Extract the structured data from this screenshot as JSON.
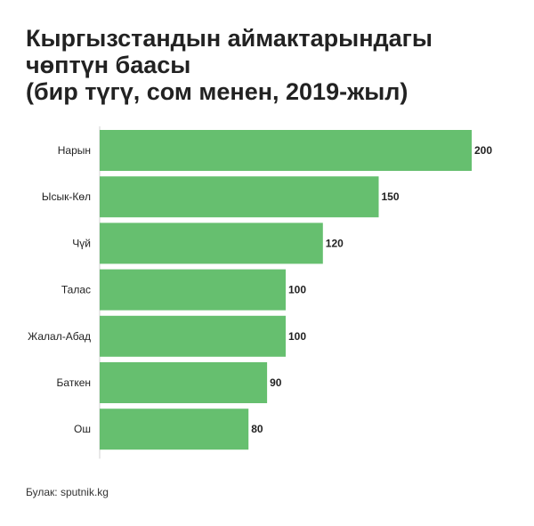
{
  "title_lines": [
    "Кыргызстандын аймактарындагы",
    "чөптүн баасы",
    "(бир түгү, сом менен, 2019-жыл)"
  ],
  "source": "Булак: sputnik.kg",
  "colors": {
    "bar": "#66bf6f",
    "axis": "#d0d0d0",
    "label": "#222222"
  },
  "chart_data": {
    "type": "bar",
    "orientation": "horizontal",
    "title": "Кыргызстандын аймактарындагы чөптүн баасы (бир түгү, сом менен, 2019-жыл)",
    "categories": [
      "Нарын",
      "Ысык-Көл",
      "Чүй",
      "Талас",
      "Жалал-Абад",
      "Баткен",
      "Ош"
    ],
    "values": [
      200,
      150,
      120,
      100,
      100,
      90,
      80
    ],
    "xlim": [
      0,
      200
    ],
    "grid": false,
    "data_labels": true
  }
}
